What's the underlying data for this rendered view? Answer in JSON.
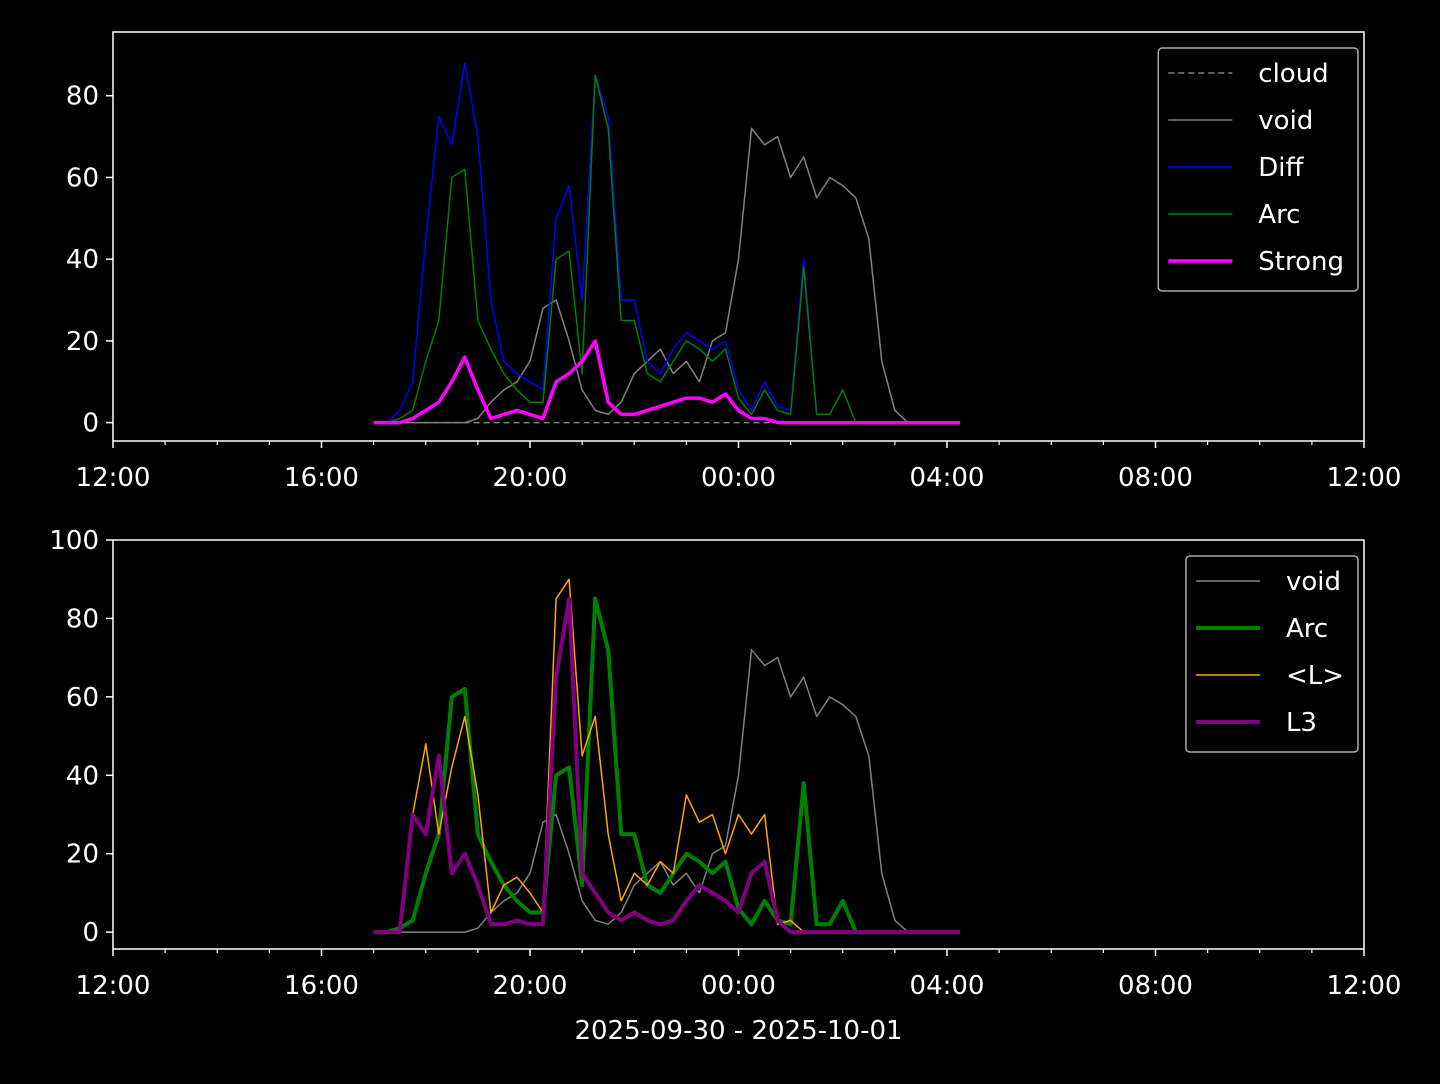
{
  "chart_data": [
    {
      "type": "line",
      "x": [
        "2025-09-30T17:00",
        "2025-09-30T17:15",
        "2025-09-30T17:30",
        "2025-09-30T17:45",
        "2025-09-30T18:00",
        "2025-09-30T18:15",
        "2025-09-30T18:30",
        "2025-09-30T18:45",
        "2025-09-30T19:00",
        "2025-09-30T19:15",
        "2025-09-30T19:30",
        "2025-09-30T19:45",
        "2025-09-30T20:00",
        "2025-09-30T20:15",
        "2025-09-30T20:30",
        "2025-09-30T20:45",
        "2025-09-30T21:00",
        "2025-09-30T21:15",
        "2025-09-30T21:30",
        "2025-09-30T21:45",
        "2025-09-30T22:00",
        "2025-09-30T22:15",
        "2025-09-30T22:30",
        "2025-09-30T22:45",
        "2025-09-30T23:00",
        "2025-09-30T23:15",
        "2025-09-30T23:30",
        "2025-09-30T23:45",
        "2025-10-01T00:00",
        "2025-10-01T00:15",
        "2025-10-01T00:30",
        "2025-10-01T00:45",
        "2025-10-01T01:00",
        "2025-10-01T01:15",
        "2025-10-01T01:30",
        "2025-10-01T01:45",
        "2025-10-01T02:00",
        "2025-10-01T02:15",
        "2025-10-01T02:30",
        "2025-10-01T02:45",
        "2025-10-01T03:00",
        "2025-10-01T03:15",
        "2025-10-01T03:30",
        "2025-10-01T03:45",
        "2025-10-01T04:00",
        "2025-10-01T04:15"
      ],
      "xlim": [
        "2025-09-30T12:00",
        "2025-10-01T12:00"
      ],
      "xticks": [
        {
          "value": "2025-09-30T12:00",
          "label": "12:00"
        },
        {
          "value": "2025-09-30T16:00",
          "label": "16:00"
        },
        {
          "value": "2025-09-30T20:00",
          "label": "20:00"
        },
        {
          "value": "2025-10-01T00:00",
          "label": "00:00"
        },
        {
          "value": "2025-10-01T04:00",
          "label": "04:00"
        },
        {
          "value": "2025-10-01T08:00",
          "label": "08:00"
        },
        {
          "value": "2025-10-01T12:00",
          "label": "12:00"
        }
      ],
      "ylim": [
        -4.5,
        95.6
      ],
      "yticks": [
        0,
        20,
        40,
        60,
        80
      ],
      "legend": "upper right",
      "series": [
        {
          "name": "cloud",
          "color": "#808080",
          "linestyle": "dashed",
          "linewidth": 1.5,
          "values": [
            0,
            0,
            0,
            0,
            0,
            0,
            0,
            0,
            0,
            0,
            0,
            0,
            0,
            0,
            0,
            0,
            0,
            0,
            0,
            0,
            0,
            0,
            0,
            0,
            0,
            0,
            0,
            0,
            0,
            0,
            0,
            0,
            0,
            0,
            0,
            0,
            0,
            0,
            0,
            0,
            0,
            0,
            0,
            0,
            0,
            0
          ]
        },
        {
          "name": "void",
          "color": "#808080",
          "linestyle": "solid",
          "linewidth": 1.5,
          "values": [
            0,
            0,
            0,
            0,
            0,
            0,
            0,
            0,
            1,
            5,
            8,
            10,
            15,
            28,
            30,
            20,
            8,
            3,
            2,
            5,
            12,
            15,
            18,
            12,
            15,
            10,
            20,
            22,
            40,
            72,
            68,
            70,
            60,
            65,
            55,
            60,
            58,
            55,
            45,
            15,
            3,
            0,
            0,
            0,
            0,
            0
          ]
        },
        {
          "name": "Diff",
          "color": "#0000ff",
          "linestyle": "solid",
          "linewidth": 1.5,
          "values": [
            0,
            0,
            3,
            10,
            45,
            75,
            68,
            88,
            70,
            30,
            15,
            12,
            10,
            8,
            50,
            58,
            30,
            85,
            75,
            30,
            30,
            15,
            12,
            18,
            22,
            20,
            18,
            20,
            8,
            3,
            10,
            4,
            3,
            40,
            2,
            2,
            8,
            0,
            0,
            0,
            0,
            0,
            0,
            0,
            0,
            0
          ]
        },
        {
          "name": "Arc",
          "color": "#008000",
          "linestyle": "solid",
          "linewidth": 1.5,
          "values": [
            0,
            0,
            1,
            3,
            15,
            25,
            60,
            62,
            25,
            18,
            12,
            8,
            5,
            5,
            40,
            42,
            12,
            85,
            72,
            25,
            25,
            12,
            10,
            15,
            20,
            18,
            15,
            18,
            6,
            2,
            8,
            3,
            2,
            38,
            2,
            2,
            8,
            0,
            0,
            0,
            0,
            0,
            0,
            0,
            0,
            0
          ]
        },
        {
          "name": "Strong",
          "color": "#ff00ff",
          "linestyle": "solid",
          "linewidth": 3.5,
          "values": [
            0,
            0,
            0,
            1,
            3,
            5,
            10,
            16,
            8,
            1,
            2,
            3,
            2,
            1,
            10,
            12,
            15,
            20,
            5,
            2,
            2,
            3,
            4,
            5,
            6,
            6,
            5,
            7,
            3,
            1,
            1,
            0,
            0,
            0,
            0,
            0,
            0,
            0,
            0,
            0,
            0,
            0,
            0,
            0,
            0,
            0
          ]
        }
      ]
    },
    {
      "type": "line",
      "xlabel": "2025-09-30 - 2025-10-01",
      "x": [
        "2025-09-30T17:00",
        "2025-09-30T17:15",
        "2025-09-30T17:30",
        "2025-09-30T17:45",
        "2025-09-30T18:00",
        "2025-09-30T18:15",
        "2025-09-30T18:30",
        "2025-09-30T18:45",
        "2025-09-30T19:00",
        "2025-09-30T19:15",
        "2025-09-30T19:30",
        "2025-09-30T19:45",
        "2025-09-30T20:00",
        "2025-09-30T20:15",
        "2025-09-30T20:30",
        "2025-09-30T20:45",
        "2025-09-30T21:00",
        "2025-09-30T21:15",
        "2025-09-30T21:30",
        "2025-09-30T21:45",
        "2025-09-30T22:00",
        "2025-09-30T22:15",
        "2025-09-30T22:30",
        "2025-09-30T22:45",
        "2025-09-30T23:00",
        "2025-09-30T23:15",
        "2025-09-30T23:30",
        "2025-09-30T23:45",
        "2025-10-01T00:00",
        "2025-10-01T00:15",
        "2025-10-01T00:30",
        "2025-10-01T00:45",
        "2025-10-01T01:00",
        "2025-10-01T01:15",
        "2025-10-01T01:30",
        "2025-10-01T01:45",
        "2025-10-01T02:00",
        "2025-10-01T02:15",
        "2025-10-01T02:30",
        "2025-10-01T02:45",
        "2025-10-01T03:00",
        "2025-10-01T03:15",
        "2025-10-01T03:30",
        "2025-10-01T03:45",
        "2025-10-01T04:00",
        "2025-10-01T04:15"
      ],
      "xlim": [
        "2025-09-30T12:00",
        "2025-10-01T12:00"
      ],
      "xticks": [
        {
          "value": "2025-09-30T12:00",
          "label": "12:00"
        },
        {
          "value": "2025-09-30T16:00",
          "label": "16:00"
        },
        {
          "value": "2025-09-30T20:00",
          "label": "20:00"
        },
        {
          "value": "2025-10-01T00:00",
          "label": "00:00"
        },
        {
          "value": "2025-10-01T04:00",
          "label": "04:00"
        },
        {
          "value": "2025-10-01T08:00",
          "label": "08:00"
        },
        {
          "value": "2025-10-01T12:00",
          "label": "12:00"
        }
      ],
      "ylim": [
        -4.3,
        100
      ],
      "yticks": [
        0,
        20,
        40,
        60,
        80,
        100
      ],
      "legend": "upper right",
      "series": [
        {
          "name": "void",
          "color": "#808080",
          "linestyle": "solid",
          "linewidth": 1.5,
          "values": [
            0,
            0,
            0,
            0,
            0,
            0,
            0,
            0,
            1,
            5,
            8,
            10,
            15,
            28,
            30,
            20,
            8,
            3,
            2,
            5,
            12,
            15,
            18,
            12,
            15,
            10,
            20,
            22,
            40,
            72,
            68,
            70,
            60,
            65,
            55,
            60,
            58,
            55,
            45,
            15,
            3,
            0,
            0,
            0,
            0,
            0
          ]
        },
        {
          "name": "Arc",
          "color": "#008000",
          "linestyle": "solid",
          "linewidth": 4,
          "values": [
            0,
            0,
            1,
            3,
            15,
            25,
            60,
            62,
            25,
            18,
            12,
            8,
            5,
            5,
            40,
            42,
            12,
            85,
            72,
            25,
            25,
            12,
            10,
            15,
            20,
            18,
            15,
            18,
            6,
            2,
            8,
            3,
            2,
            38,
            2,
            2,
            8,
            0,
            0,
            0,
            0,
            0,
            0,
            0,
            0,
            0
          ]
        },
        {
          "name": "<L>",
          "color": "#ffa500",
          "linestyle": "solid",
          "linewidth": 1.5,
          "values": [
            0,
            0,
            0,
            30,
            48,
            25,
            42,
            55,
            35,
            5,
            12,
            14,
            10,
            5,
            85,
            90,
            45,
            55,
            25,
            8,
            15,
            12,
            18,
            15,
            35,
            28,
            30,
            20,
            30,
            25,
            30,
            2,
            3,
            0,
            0,
            0,
            0,
            0,
            0,
            0,
            0,
            0,
            0,
            0,
            0,
            0
          ]
        },
        {
          "name": "L3",
          "color": "#800080",
          "linestyle": "solid",
          "linewidth": 4,
          "values": [
            0,
            0,
            0,
            30,
            25,
            45,
            15,
            20,
            12,
            2,
            2,
            3,
            2,
            2,
            65,
            85,
            15,
            10,
            5,
            3,
            5,
            3,
            2,
            3,
            8,
            12,
            10,
            8,
            5,
            15,
            18,
            3,
            0,
            0,
            0,
            0,
            0,
            0,
            0,
            0,
            0,
            0,
            0,
            0,
            0,
            0
          ]
        }
      ]
    }
  ]
}
